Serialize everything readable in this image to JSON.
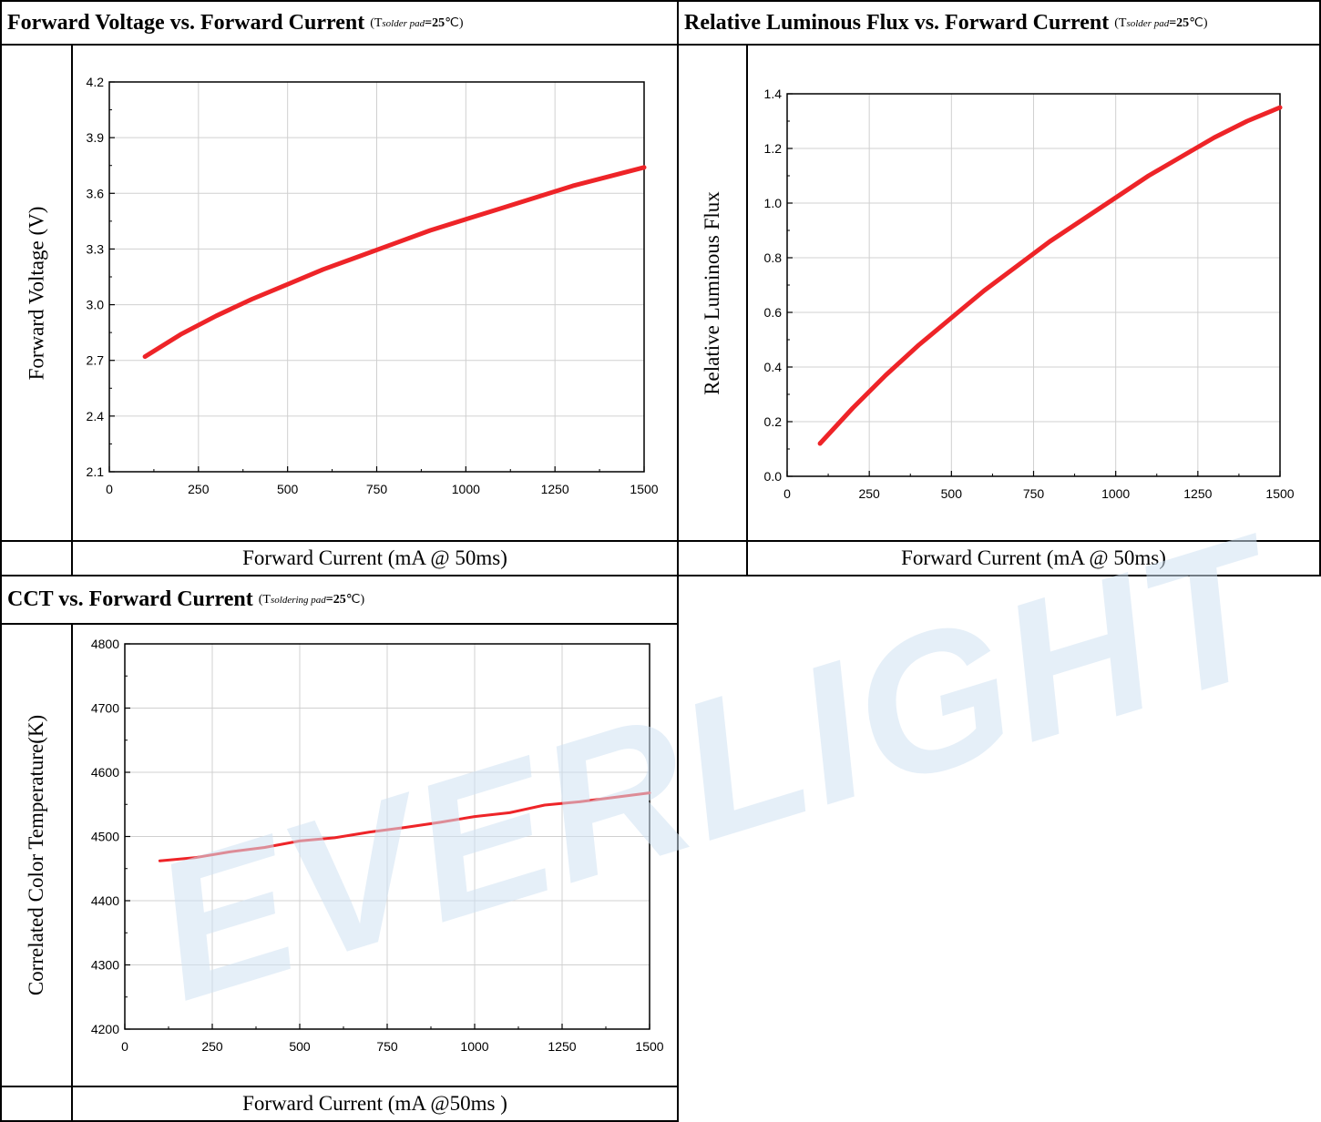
{
  "colors": {
    "curve": "#ee2428",
    "grid": "#d0d0d0",
    "watermark": "#cfe1f3"
  },
  "watermark": "EVERLIGHT",
  "chart_data": [
    {
      "type": "line",
      "title": "Forward Voltage vs. Forward Current",
      "condition": {
        "prefix": "(T",
        "subscript": "solder pad",
        "value": "=25",
        "unit": "℃)"
      },
      "xlabel": "Forward Current (mA @ 50ms)",
      "ylabel": "Forward Voltage (V)",
      "xlim": [
        0,
        1500
      ],
      "ylim": [
        2.1,
        4.2
      ],
      "xticks": [
        "0",
        "250",
        "500",
        "750",
        "1000",
        "1250",
        "1500"
      ],
      "yticks": [
        "2.1",
        "2.4",
        "2.7",
        "3.0",
        "3.3",
        "3.6",
        "3.9",
        "4.2"
      ],
      "grid": true,
      "series": [
        {
          "x": [
            100,
            200,
            300,
            400,
            500,
            600,
            700,
            800,
            900,
            1000,
            1100,
            1200,
            1300,
            1400,
            1500
          ],
          "y": [
            2.72,
            2.84,
            2.94,
            3.03,
            3.11,
            3.19,
            3.26,
            3.33,
            3.4,
            3.46,
            3.52,
            3.58,
            3.64,
            3.69,
            3.74
          ]
        }
      ]
    },
    {
      "type": "line",
      "title": "Relative Luminous Flux vs. Forward Current",
      "condition": {
        "prefix": "(T",
        "subscript": "solder pad",
        "value": "=25",
        "unit": "℃)"
      },
      "xlabel": "Forward Current (mA @ 50ms)",
      "ylabel": "Relative Luminous Flux",
      "xlim": [
        0,
        1500
      ],
      "ylim": [
        0,
        1.4
      ],
      "xticks": [
        "0",
        "250",
        "500",
        "750",
        "1000",
        "1250",
        "1500"
      ],
      "yticks": [
        "0.0",
        "0.2",
        "0.4",
        "0.6",
        "0.8",
        "1.0",
        "1.2",
        "1.4"
      ],
      "grid": true,
      "series": [
        {
          "x": [
            100,
            200,
            300,
            400,
            500,
            600,
            700,
            800,
            900,
            1000,
            1100,
            1200,
            1300,
            1400,
            1500
          ],
          "y": [
            0.12,
            0.25,
            0.37,
            0.48,
            0.58,
            0.68,
            0.77,
            0.86,
            0.94,
            1.02,
            1.1,
            1.17,
            1.24,
            1.3,
            1.35
          ]
        }
      ]
    },
    {
      "type": "line",
      "title": "CCT vs. Forward Current",
      "condition": {
        "prefix": "(T",
        "subscript": "soldering pad",
        "value": "=25",
        "unit": "℃)"
      },
      "xlabel": "Forward Current (mA @50ms )",
      "ylabel": "Correlated Color Temperature(K)",
      "xlim": [
        0,
        1500
      ],
      "ylim": [
        4200,
        4800
      ],
      "xticks": [
        "0",
        "250",
        "500",
        "750",
        "1000",
        "1250",
        "1500"
      ],
      "yticks": [
        "4200",
        "4300",
        "4400",
        "4500",
        "4600",
        "4700",
        "4800"
      ],
      "grid": true,
      "series": [
        {
          "x": [
            100,
            200,
            300,
            400,
            500,
            600,
            700,
            800,
            900,
            1000,
            1100,
            1200,
            1300,
            1400,
            1500
          ],
          "y": [
            4462,
            4467,
            4476,
            4483,
            4493,
            4498,
            4507,
            4514,
            4522,
            4531,
            4537,
            4549,
            4554,
            4561,
            4568
          ]
        }
      ]
    }
  ]
}
